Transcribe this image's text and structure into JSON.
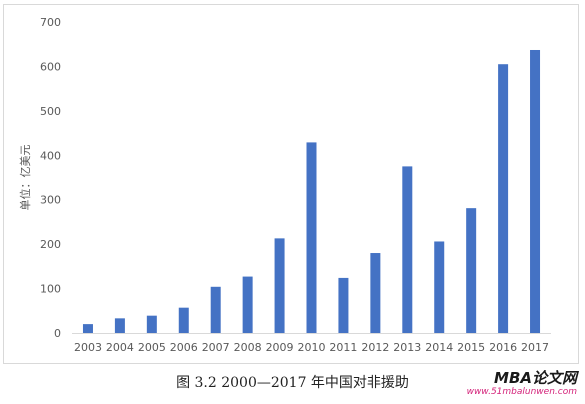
{
  "chart_data": {
    "type": "bar",
    "title": "",
    "xlabel": "",
    "ylabel": "单位：亿美元",
    "categories": [
      "2003",
      "2004",
      "2005",
      "2006",
      "2007",
      "2008",
      "2009",
      "2010",
      "2011",
      "2012",
      "2013",
      "2014",
      "2015",
      "2016",
      "2017"
    ],
    "values": [
      20,
      33,
      39,
      57,
      104,
      127,
      213,
      429,
      124,
      180,
      375,
      206,
      281,
      605,
      637
    ],
    "ylim": [
      0,
      700
    ],
    "yticks": [
      0,
      100,
      200,
      300,
      400,
      500,
      600,
      700
    ],
    "bar_color": "#4472c4",
    "grid": false
  },
  "caption": "图 3.2 2000—2017 年中国对非援助",
  "watermark": {
    "brand": "MBA论文网",
    "url": "www.51mbalunwen.com"
  }
}
